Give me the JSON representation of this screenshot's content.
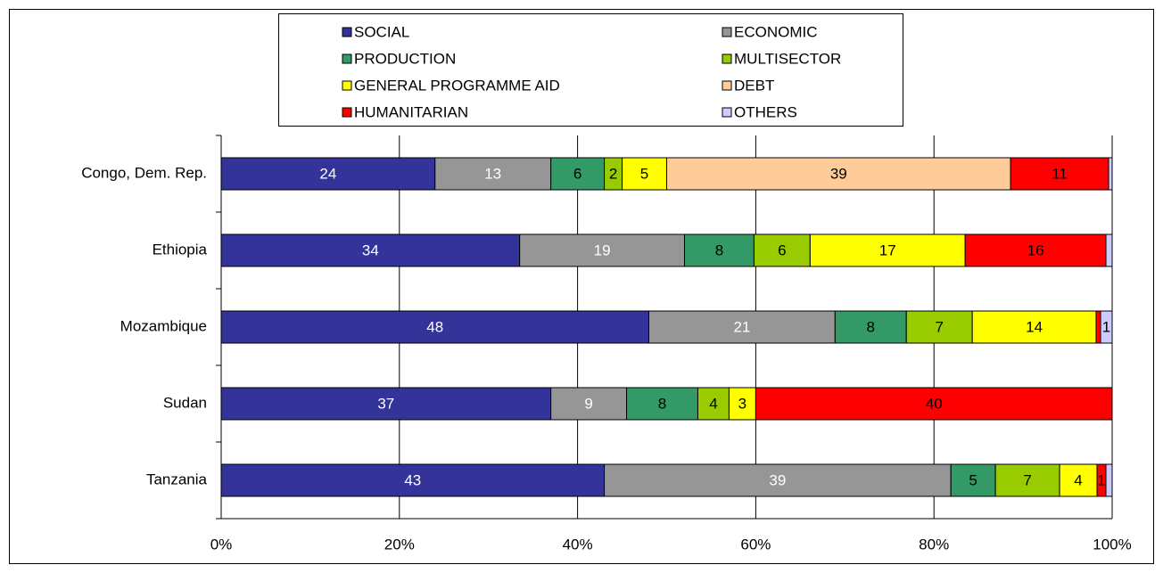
{
  "chart_data": {
    "type": "stacked_barh",
    "categories": [
      "Congo, Dem. Rep.",
      "Ethiopia",
      "Mozambique",
      "Sudan",
      "Tanzania"
    ],
    "series": [
      {
        "name": "SOCIAL",
        "color": "#333399",
        "label_color": "#ffffff",
        "values": [
          24,
          33.5,
          48,
          37,
          43
        ],
        "value_labels": [
          "24",
          "34",
          "48",
          "37",
          "43"
        ]
      },
      {
        "name": "ECONOMIC",
        "color": "#969696",
        "label_color": "#ffffff",
        "values": [
          13,
          18.5,
          20.9,
          8.5,
          38.9
        ],
        "value_labels": [
          "13",
          "19",
          "21",
          "9",
          "39"
        ]
      },
      {
        "name": "PRODUCTION",
        "color": "#339966",
        "label_color": "#000000",
        "values": [
          6,
          7.8,
          8,
          8,
          5
        ],
        "value_labels": [
          "6",
          "8",
          "8",
          "8",
          "5"
        ]
      },
      {
        "name": "MULTISECTOR",
        "color": "#99cc00",
        "label_color": "#000000",
        "values": [
          2,
          6.3,
          7.4,
          3.5,
          7.2
        ],
        "value_labels": [
          "2",
          "6",
          "7",
          "4",
          "7"
        ]
      },
      {
        "name": "GENERAL PROGRAMME AID",
        "color": "#ffff00",
        "label_color": "#000000",
        "values": [
          5,
          17.4,
          13.9,
          3,
          4.2
        ],
        "value_labels": [
          "5",
          "17",
          "14",
          "3",
          "4"
        ]
      },
      {
        "name": "DEBT",
        "color": "#ffcc99",
        "label_color": "#000000",
        "values": [
          38.6,
          0,
          0,
          0,
          0
        ],
        "value_labels": [
          "39",
          null,
          null,
          null,
          null
        ]
      },
      {
        "name": "HUMANITARIAN",
        "color": "#ff0000",
        "label_color": "#000000",
        "values": [
          11,
          15.8,
          0.5,
          40,
          1
        ],
        "value_labels": [
          "11",
          "16",
          null,
          "40",
          "1"
        ]
      },
      {
        "name": "OTHERS",
        "color": "#ccccff",
        "label_color": "#000000",
        "values": [
          0.4,
          0.7,
          1.3,
          0,
          0.7
        ],
        "value_labels": [
          null,
          null,
          "1",
          null,
          null
        ]
      }
    ],
    "xlim": [
      0,
      100
    ],
    "xticks": [
      {
        "value": 0,
        "label": "0%"
      },
      {
        "value": 20,
        "label": "20%"
      },
      {
        "value": 40,
        "label": "40%"
      },
      {
        "value": 60,
        "label": "60%"
      },
      {
        "value": 80,
        "label": "80%"
      },
      {
        "value": 100,
        "label": "100%"
      }
    ],
    "grid": true,
    "legend": "top"
  }
}
